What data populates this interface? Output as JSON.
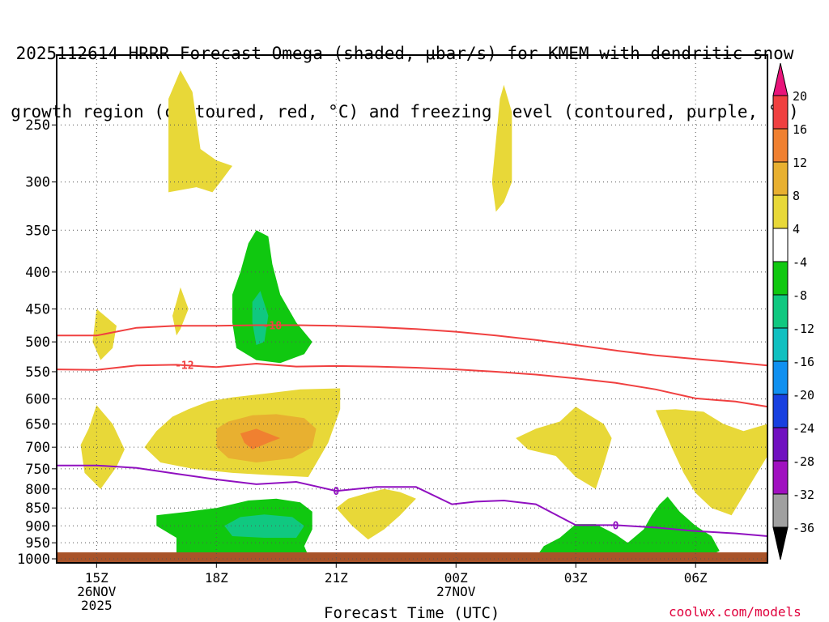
{
  "title_line1": "2025112614 HRRR Forecast Omega (shaded, μbar/s) for KMEM with dendritic snow",
  "title_line2": "growth region (contoured, red, °C) and freezing level (contoured, purple, °C)",
  "watermark": "coolwx.com/models",
  "chart_data": {
    "type": "heatmap",
    "xlabel": "Forecast Time (UTC)",
    "ylabel": "",
    "x_ticks": [
      {
        "hour": 15,
        "label": [
          "15Z",
          "26NOV",
          "2025"
        ]
      },
      {
        "hour": 18,
        "label": [
          "18Z"
        ]
      },
      {
        "hour": 21,
        "label": [
          "21Z"
        ]
      },
      {
        "hour": 24,
        "label": [
          "00Z",
          "27NOV"
        ]
      },
      {
        "hour": 27,
        "label": [
          "03Z"
        ]
      },
      {
        "hour": 30,
        "label": [
          "06Z"
        ]
      }
    ],
    "xlim": [
      14,
      31.8
    ],
    "y_ticks": [
      250,
      300,
      350,
      400,
      450,
      500,
      550,
      600,
      650,
      700,
      750,
      800,
      850,
      900,
      950,
      1000
    ],
    "ylim_hPa": [
      200,
      1013
    ],
    "colorbar": {
      "levels": [
        20,
        16,
        12,
        8,
        4,
        -4,
        -8,
        -12,
        -16,
        -20,
        -24,
        -28,
        -32,
        -36
      ],
      "colors": [
        "#e8147a",
        "#f04040",
        "#f08030",
        "#e8b030",
        "#e8d838",
        "#ffffff",
        "#10c810",
        "#10c880",
        "#10c0c0",
        "#1090f0",
        "#1840e0",
        "#7010c0",
        "#a010c0",
        "#a0a0a0",
        "#000000"
      ],
      "unit": "μbar/s"
    },
    "contours": [
      {
        "name": "dendritic-top",
        "label": "-18",
        "color": "#f04040",
        "points": [
          [
            14,
            490
          ],
          [
            15,
            490
          ],
          [
            16,
            478
          ],
          [
            17,
            475
          ],
          [
            18,
            475
          ],
          [
            19,
            474
          ],
          [
            20,
            474
          ],
          [
            21,
            475
          ],
          [
            22,
            477
          ],
          [
            23,
            480
          ],
          [
            24,
            484
          ],
          [
            25,
            490
          ],
          [
            26,
            497
          ],
          [
            27,
            505
          ],
          [
            28,
            514
          ],
          [
            29,
            522
          ],
          [
            30,
            528
          ],
          [
            31,
            534
          ],
          [
            31.8,
            539
          ]
        ]
      },
      {
        "name": "dendritic-bottom",
        "label": "-12",
        "color": "#f04040",
        "points": [
          [
            14,
            546
          ],
          [
            15,
            547
          ],
          [
            16,
            539
          ],
          [
            17,
            538
          ],
          [
            18,
            542
          ],
          [
            19,
            536
          ],
          [
            20,
            541
          ],
          [
            21,
            540
          ],
          [
            22,
            541
          ],
          [
            23,
            543
          ],
          [
            24,
            546
          ],
          [
            25,
            550
          ],
          [
            26,
            555
          ],
          [
            27,
            562
          ],
          [
            28,
            570
          ],
          [
            29,
            582
          ],
          [
            30,
            599
          ],
          [
            31,
            605
          ],
          [
            31.8,
            615
          ]
        ]
      },
      {
        "name": "freezing-level",
        "label": "0",
        "color": "#9010c0",
        "points": [
          [
            14,
            742
          ],
          [
            15,
            742
          ],
          [
            16,
            748
          ],
          [
            17,
            762
          ],
          [
            18,
            776
          ],
          [
            19,
            788
          ],
          [
            20,
            782
          ],
          [
            21,
            805
          ],
          [
            22,
            795
          ],
          [
            23,
            795
          ],
          [
            23.9,
            840
          ],
          [
            24.5,
            833
          ],
          [
            25.2,
            830
          ],
          [
            26,
            840
          ],
          [
            27,
            898
          ],
          [
            28,
            898
          ],
          [
            29,
            905
          ],
          [
            30,
            915
          ],
          [
            31,
            922
          ],
          [
            31.8,
            930
          ]
        ]
      }
    ],
    "shaded_areas": [
      {
        "color": "#e8d838",
        "value_range": [
          4,
          8
        ],
        "points": [
          [
            16.8,
            230
          ],
          [
            17.1,
            210
          ],
          [
            17.4,
            225
          ],
          [
            17.6,
            270
          ],
          [
            18,
            280
          ],
          [
            18.4,
            285
          ],
          [
            18.1,
            300
          ],
          [
            17.9,
            310
          ],
          [
            17.5,
            305
          ],
          [
            16.8,
            310
          ]
        ]
      },
      {
        "color": "#e8d838",
        "value_range": [
          4,
          8
        ],
        "points": [
          [
            25.1,
            230
          ],
          [
            25.2,
            220
          ],
          [
            25.4,
            240
          ],
          [
            25.4,
            300
          ],
          [
            25.2,
            320
          ],
          [
            25.0,
            330
          ],
          [
            24.9,
            300
          ]
        ]
      },
      {
        "color": "#e8d838",
        "value_range": [
          4,
          8
        ],
        "points": [
          [
            17.0,
            440
          ],
          [
            17.1,
            420
          ],
          [
            17.3,
            450
          ],
          [
            17.1,
            480
          ],
          [
            17.0,
            490
          ],
          [
            16.9,
            460
          ]
        ]
      },
      {
        "color": "#e8d838",
        "value_range": [
          4,
          8
        ],
        "points": [
          [
            15.0,
            450
          ],
          [
            15.5,
            475
          ],
          [
            15.4,
            510
          ],
          [
            15.1,
            530
          ],
          [
            14.9,
            500
          ]
        ]
      },
      {
        "color": "#e8d838",
        "value_range": [
          4,
          8
        ],
        "points": [
          [
            14.6,
            695
          ],
          [
            14.8,
            660
          ],
          [
            15.0,
            612
          ],
          [
            15.4,
            650
          ],
          [
            15.7,
            705
          ],
          [
            15.5,
            745
          ],
          [
            15.1,
            800
          ],
          [
            14.7,
            760
          ]
        ]
      },
      {
        "color": "#e8d838",
        "value_range": [
          4,
          8
        ],
        "points": [
          [
            16.2,
            700
          ],
          [
            16.5,
            665
          ],
          [
            16.9,
            635
          ],
          [
            17.3,
            620
          ],
          [
            17.8,
            605
          ],
          [
            18.4,
            597
          ],
          [
            19.2,
            590
          ],
          [
            20.1,
            582
          ],
          [
            21.1,
            580
          ],
          [
            21.1,
            620
          ],
          [
            20.8,
            690
          ],
          [
            20.3,
            770
          ],
          [
            19.3,
            765
          ],
          [
            18.4,
            760
          ],
          [
            17.4,
            750
          ],
          [
            16.6,
            735
          ]
        ]
      },
      {
        "color": "#e8b030",
        "value_range": [
          8,
          12
        ],
        "points": [
          [
            18.0,
            660
          ],
          [
            18.3,
            645
          ],
          [
            18.9,
            632
          ],
          [
            19.5,
            630
          ],
          [
            20.2,
            638
          ],
          [
            20.5,
            660
          ],
          [
            20.4,
            700
          ],
          [
            19.9,
            725
          ],
          [
            19.0,
            735
          ],
          [
            18.3,
            725
          ],
          [
            18.0,
            700
          ]
        ]
      },
      {
        "color": "#f08030",
        "value_range": [
          12,
          16
        ],
        "points": [
          [
            18.6,
            670
          ],
          [
            19.0,
            660
          ],
          [
            19.3,
            670
          ],
          [
            19.6,
            680
          ],
          [
            19.3,
            690
          ],
          [
            18.9,
            705
          ],
          [
            18.7,
            690
          ]
        ]
      },
      {
        "color": "#e8d838",
        "value_range": [
          4,
          8
        ],
        "points": [
          [
            21.0,
            850
          ],
          [
            21.3,
            825
          ],
          [
            21.8,
            810
          ],
          [
            22.2,
            800
          ],
          [
            22.6,
            808
          ],
          [
            23.0,
            825
          ],
          [
            22.6,
            870
          ],
          [
            22.2,
            910
          ],
          [
            21.8,
            940
          ],
          [
            21.4,
            900
          ]
        ]
      },
      {
        "color": "#e8d838",
        "value_range": [
          4,
          8
        ],
        "points": [
          [
            25.5,
            680
          ],
          [
            26.0,
            660
          ],
          [
            26.6,
            645
          ],
          [
            27.0,
            615
          ],
          [
            27.3,
            630
          ],
          [
            27.7,
            650
          ],
          [
            27.9,
            680
          ],
          [
            27.7,
            740
          ],
          [
            27.5,
            800
          ],
          [
            27.0,
            770
          ],
          [
            26.5,
            720
          ],
          [
            25.8,
            705
          ]
        ]
      },
      {
        "color": "#e8d838",
        "value_range": [
          4,
          8
        ],
        "points": [
          [
            29.0,
            622
          ],
          [
            29.5,
            620
          ],
          [
            30.2,
            625
          ],
          [
            30.7,
            650
          ],
          [
            31.2,
            665
          ],
          [
            31.8,
            650
          ],
          [
            31.8,
            720
          ],
          [
            31.3,
            800
          ],
          [
            30.9,
            870
          ],
          [
            30.4,
            850
          ],
          [
            30.0,
            810
          ],
          [
            29.7,
            760
          ],
          [
            29.4,
            700
          ],
          [
            29.2,
            660
          ]
        ]
      },
      {
        "color": "#10c810",
        "value_range": [
          -8,
          -4
        ],
        "points": [
          [
            18.6,
            400
          ],
          [
            18.8,
            365
          ],
          [
            19.0,
            350
          ],
          [
            19.3,
            357
          ],
          [
            19.4,
            390
          ],
          [
            19.6,
            430
          ],
          [
            20.0,
            470
          ],
          [
            20.4,
            500
          ],
          [
            20.2,
            520
          ],
          [
            19.6,
            535
          ],
          [
            19.0,
            530
          ],
          [
            18.5,
            510
          ],
          [
            18.4,
            470
          ],
          [
            18.4,
            430
          ]
        ]
      },
      {
        "color": "#10c880",
        "value_range": [
          -12,
          -8
        ],
        "points": [
          [
            18.9,
            440
          ],
          [
            19.1,
            425
          ],
          [
            19.3,
            460
          ],
          [
            19.2,
            500
          ],
          [
            19.0,
            505
          ],
          [
            18.9,
            470
          ]
        ]
      },
      {
        "color": "#10c810",
        "value_range": [
          -8,
          -4
        ],
        "points": [
          [
            16.5,
            870
          ],
          [
            17.3,
            860
          ],
          [
            18.0,
            850
          ],
          [
            18.8,
            830
          ],
          [
            19.5,
            825
          ],
          [
            20.1,
            835
          ],
          [
            20.4,
            860
          ],
          [
            20.4,
            910
          ],
          [
            20.2,
            960
          ],
          [
            20.3,
            990
          ],
          [
            17.0,
            990
          ],
          [
            17.0,
            935
          ],
          [
            16.5,
            900
          ]
        ]
      },
      {
        "color": "#10c880",
        "value_range": [
          -12,
          -8
        ],
        "points": [
          [
            18.2,
            900
          ],
          [
            18.6,
            875
          ],
          [
            19.2,
            868
          ],
          [
            19.9,
            875
          ],
          [
            20.2,
            900
          ],
          [
            20.0,
            935
          ],
          [
            19.2,
            935
          ],
          [
            18.4,
            930
          ]
        ]
      },
      {
        "color": "#10c810",
        "value_range": [
          -8,
          -4
        ],
        "points": [
          [
            25.0,
            998
          ],
          [
            26.0,
            995
          ],
          [
            26.2,
            960
          ],
          [
            26.6,
            935
          ],
          [
            27.0,
            895
          ],
          [
            27.5,
            895
          ],
          [
            28.0,
            925
          ],
          [
            28.3,
            950
          ],
          [
            28.7,
            910
          ],
          [
            28.9,
            870
          ],
          [
            29.1,
            840
          ],
          [
            29.3,
            820
          ],
          [
            29.6,
            860
          ],
          [
            30.0,
            900
          ],
          [
            30.4,
            930
          ],
          [
            30.6,
            975
          ],
          [
            30.2,
            998
          ],
          [
            28.5,
            995
          ]
        ]
      }
    ]
  }
}
